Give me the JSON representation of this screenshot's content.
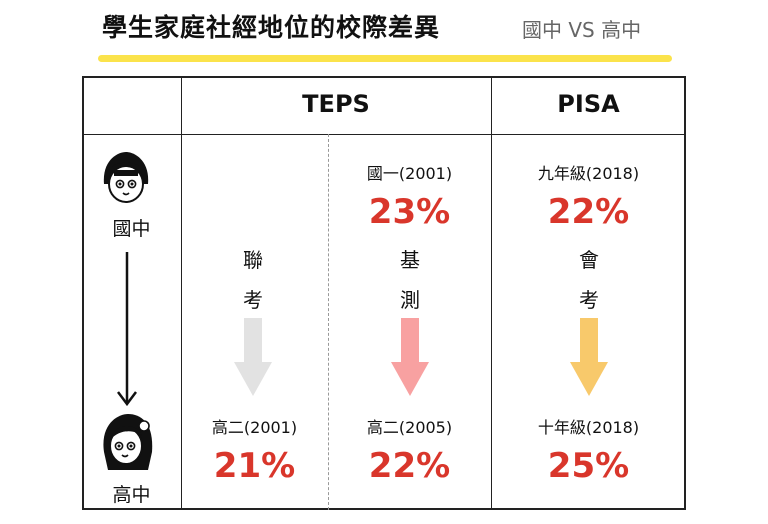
{
  "title": "學生家庭社經地位的校際差異",
  "subtitle": "國中 VS 高中",
  "columns": {
    "teps": "TEPS",
    "pisa": "PISA"
  },
  "left": {
    "junior_label": "國中",
    "senior_label": "高中"
  },
  "teps_joint": {
    "exam_chars": [
      "聯",
      "考"
    ],
    "bottom_label": "高二(2001)",
    "bottom_value": "21%",
    "arrow_color": "#e2e2e2"
  },
  "teps_basic": {
    "top_label": "國一(2001)",
    "top_value": "23%",
    "exam_chars": [
      "基",
      "測"
    ],
    "bottom_label": "高二(2005)",
    "bottom_value": "22%",
    "arrow_color": "#f8a1a1"
  },
  "pisa": {
    "top_label": "九年級(2018)",
    "top_value": "22%",
    "exam_chars": [
      "會",
      "考"
    ],
    "bottom_label": "十年級(2018)",
    "bottom_value": "25%",
    "arrow_color": "#f8c96b"
  }
}
